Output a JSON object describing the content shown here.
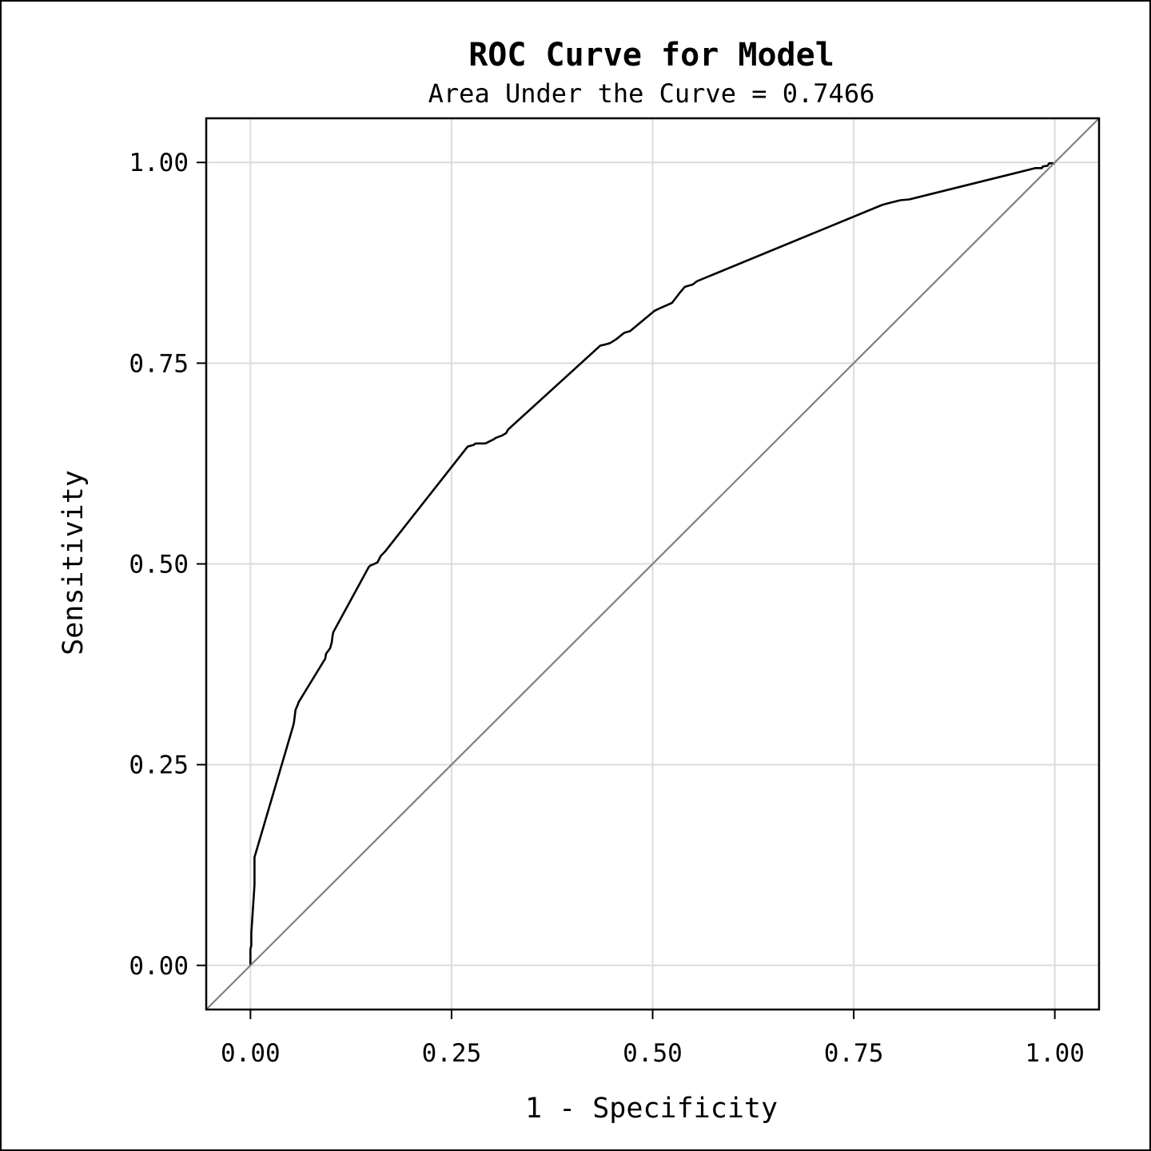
{
  "chart_data": {
    "type": "line",
    "title": "ROC Curve for Model",
    "subtitle": "Area Under the Curve = 0.7466",
    "xlabel": "1 - Specificity",
    "ylabel": "Sensitivity",
    "xlim": [
      -0.055,
      1.055
    ],
    "ylim": [
      -0.055,
      1.055
    ],
    "xticks": [
      0,
      0.25,
      0.5,
      0.75,
      1
    ],
    "xtick_labels": [
      "0.00",
      "0.25",
      "0.50",
      "0.75",
      "1.00"
    ],
    "yticks": [
      0,
      0.25,
      0.5,
      0.75,
      1
    ],
    "ytick_labels": [
      "0.00",
      "0.25",
      "0.50",
      "0.75",
      "1.00"
    ],
    "grid": true,
    "series": [
      {
        "color": "#000000",
        "x": [
          0.0,
          0.0,
          0.001,
          0.001,
          0.005,
          0.005,
          0.006,
          0.053,
          0.054,
          0.056,
          0.059,
          0.06,
          0.093,
          0.094,
          0.099,
          0.101,
          0.102,
          0.103,
          0.147,
          0.149,
          0.154,
          0.158,
          0.162,
          0.167,
          0.27,
          0.277,
          0.28,
          0.286,
          0.292,
          0.302,
          0.305,
          0.313,
          0.318,
          0.32,
          0.435,
          0.44,
          0.447,
          0.455,
          0.461,
          0.465,
          0.472,
          0.502,
          0.508,
          0.524,
          0.534,
          0.54,
          0.55,
          0.555,
          0.785,
          0.792,
          0.808,
          0.819,
          0.976,
          0.984,
          0.985,
          0.991,
          0.993,
          1.0
        ],
        "y": [
          0.0,
          0.02,
          0.025,
          0.04,
          0.1,
          0.135,
          0.138,
          0.298,
          0.302,
          0.318,
          0.325,
          0.328,
          0.382,
          0.388,
          0.395,
          0.402,
          0.41,
          0.415,
          0.496,
          0.498,
          0.5,
          0.502,
          0.51,
          0.515,
          0.646,
          0.648,
          0.65,
          0.65,
          0.65,
          0.655,
          0.657,
          0.66,
          0.663,
          0.667,
          0.772,
          0.773,
          0.775,
          0.78,
          0.785,
          0.788,
          0.79,
          0.815,
          0.818,
          0.825,
          0.838,
          0.845,
          0.848,
          0.852,
          0.947,
          0.949,
          0.953,
          0.954,
          0.993,
          0.993,
          0.995,
          0.996,
          0.999,
          0.999
        ]
      },
      {
        "color": "#808080",
        "x": [
          -0.055,
          1.055
        ],
        "y": [
          -0.055,
          1.055
        ]
      }
    ]
  }
}
